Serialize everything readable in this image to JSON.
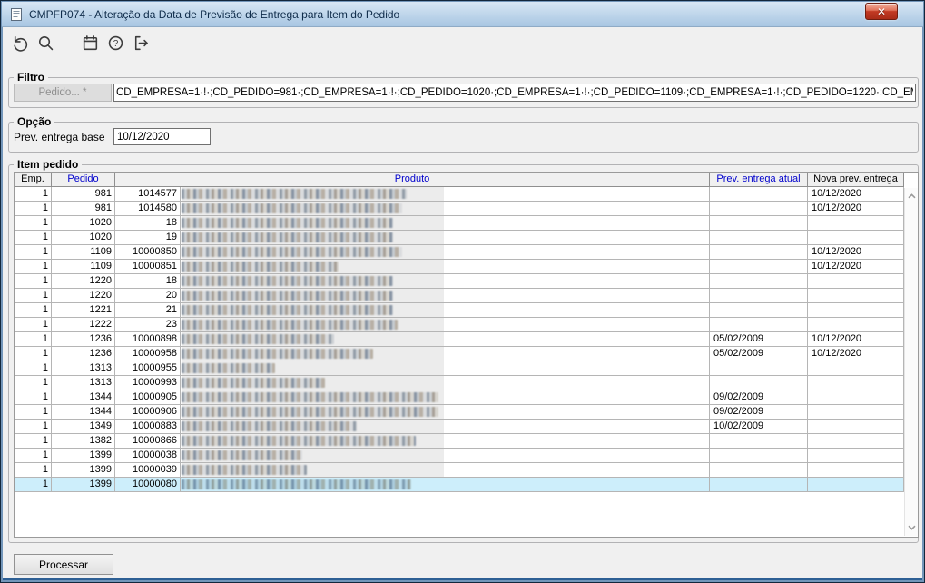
{
  "colors": {
    "header_link_blue": "#0000cc",
    "selection_bg": "#cdeefb",
    "titlebar_gradient_top": "#d9e7f5",
    "titlebar_gradient_bottom": "#a8c6e2",
    "close_button_red": "#c23a24"
  },
  "window": {
    "title": "CMPFP074 - Alteração da Data de Previsão de Entrega para Item do Pedido",
    "icon": "document-icon",
    "close_glyph": "✕"
  },
  "toolbar": {
    "icons": [
      "undo-icon",
      "search-icon",
      "calendar-icon",
      "help-icon",
      "exit-icon"
    ]
  },
  "filtro": {
    "legend": "Filtro",
    "pedido_button": "Pedido... *",
    "value": "CD_EMPRESA=1·!·;CD_PEDIDO=981·;CD_EMPRESA=1·!·;CD_PEDIDO=1020·;CD_EMPRESA=1·!·;CD_PEDIDO=1109·;CD_EMPRESA=1·!·;CD_PEDIDO=1220·;CD_EMPRESA=1·!·;CD_PEDID"
  },
  "opcao": {
    "legend": "Opção",
    "label": "Prev. entrega base",
    "value": "10/12/2020"
  },
  "item_pedido": {
    "legend": "Item pedido",
    "columns": [
      {
        "label": "Emp.",
        "blue": false
      },
      {
        "label": "Pedido",
        "blue": true
      },
      {
        "label": "Produto",
        "blue": true
      },
      {
        "label": "Prev. entrega atual",
        "blue": true
      },
      {
        "label": "Nova prev. entrega",
        "blue": false
      }
    ],
    "rows": [
      {
        "emp": "1",
        "pedido": "981",
        "produto_cod": "1014577",
        "prev_atual": "",
        "nova_prev": "10/12/2020",
        "redacted_w": 248,
        "selected": false
      },
      {
        "emp": "1",
        "pedido": "981",
        "produto_cod": "1014580",
        "prev_atual": "",
        "nova_prev": "10/12/2020",
        "redacted_w": 243,
        "selected": false
      },
      {
        "emp": "1",
        "pedido": "1020",
        "produto_cod": "18",
        "prev_atual": "",
        "nova_prev": "",
        "redacted_w": 233,
        "selected": false
      },
      {
        "emp": "1",
        "pedido": "1020",
        "produto_cod": "19",
        "prev_atual": "",
        "nova_prev": "",
        "redacted_w": 233,
        "selected": false
      },
      {
        "emp": "1",
        "pedido": "1109",
        "produto_cod": "10000850",
        "prev_atual": "",
        "nova_prev": "10/12/2020",
        "redacted_w": 243,
        "selected": false
      },
      {
        "emp": "1",
        "pedido": "1109",
        "produto_cod": "10000851",
        "prev_atual": "",
        "nova_prev": "10/12/2020",
        "redacted_w": 173,
        "selected": false
      },
      {
        "emp": "1",
        "pedido": "1220",
        "produto_cod": "18",
        "prev_atual": "",
        "nova_prev": "",
        "redacted_w": 233,
        "selected": false
      },
      {
        "emp": "1",
        "pedido": "1220",
        "produto_cod": "20",
        "prev_atual": "",
        "nova_prev": "",
        "redacted_w": 233,
        "selected": false
      },
      {
        "emp": "1",
        "pedido": "1221",
        "produto_cod": "21",
        "prev_atual": "",
        "nova_prev": "",
        "redacted_w": 233,
        "selected": false
      },
      {
        "emp": "1",
        "pedido": "1222",
        "produto_cod": "23",
        "prev_atual": "",
        "nova_prev": "",
        "redacted_w": 238,
        "selected": false
      },
      {
        "emp": "1",
        "pedido": "1236",
        "produto_cod": "10000898",
        "prev_atual": "05/02/2009",
        "nova_prev": "10/12/2020",
        "redacted_w": 168,
        "selected": false
      },
      {
        "emp": "1",
        "pedido": "1236",
        "produto_cod": "10000958",
        "prev_atual": "05/02/2009",
        "nova_prev": "10/12/2020",
        "redacted_w": 211,
        "selected": false
      },
      {
        "emp": "1",
        "pedido": "1313",
        "produto_cod": "10000955",
        "prev_atual": "",
        "nova_prev": "",
        "redacted_w": 103,
        "selected": false
      },
      {
        "emp": "1",
        "pedido": "1313",
        "produto_cod": "10000993",
        "prev_atual": "",
        "nova_prev": "",
        "redacted_w": 158,
        "selected": false
      },
      {
        "emp": "1",
        "pedido": "1344",
        "produto_cod": "10000905",
        "prev_atual": "09/02/2009",
        "nova_prev": "",
        "redacted_w": 283,
        "selected": false
      },
      {
        "emp": "1",
        "pedido": "1344",
        "produto_cod": "10000906",
        "prev_atual": "09/02/2009",
        "nova_prev": "",
        "redacted_w": 283,
        "selected": false
      },
      {
        "emp": "1",
        "pedido": "1349",
        "produto_cod": "10000883",
        "prev_atual": "10/02/2009",
        "nova_prev": "",
        "redacted_w": 193,
        "selected": false
      },
      {
        "emp": "1",
        "pedido": "1382",
        "produto_cod": "10000866",
        "prev_atual": "",
        "nova_prev": "",
        "redacted_w": 258,
        "selected": false
      },
      {
        "emp": "1",
        "pedido": "1399",
        "produto_cod": "10000038",
        "prev_atual": "",
        "nova_prev": "",
        "redacted_w": 133,
        "selected": false
      },
      {
        "emp": "1",
        "pedido": "1399",
        "produto_cod": "10000039",
        "prev_atual": "",
        "nova_prev": "",
        "redacted_w": 138,
        "selected": false
      },
      {
        "emp": "1",
        "pedido": "1399",
        "produto_cod": "10000080",
        "prev_atual": "",
        "nova_prev": "",
        "redacted_w": 253,
        "selected": true
      }
    ]
  },
  "footer": {
    "processar": "Processar"
  }
}
